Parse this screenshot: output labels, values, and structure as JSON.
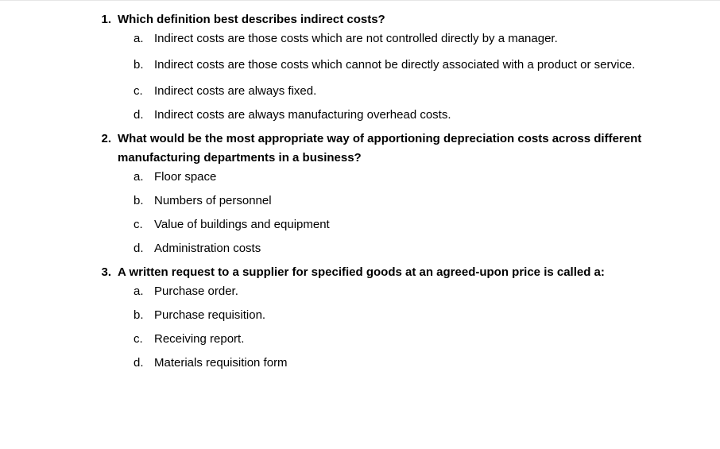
{
  "questions": [
    {
      "number": "1.",
      "text": "Which definition best describes indirect costs?",
      "justify": false,
      "options": [
        {
          "letter": "a.",
          "text": "Indirect costs are those costs which are not controlled directly by a manager.",
          "justify": false,
          "spaced": false
        },
        {
          "letter": "b.",
          "text": "Indirect costs are those costs which cannot be directly associated with a product or service.",
          "justify": true,
          "spaced": true
        },
        {
          "letter": "c.",
          "text": "Indirect costs are always fixed.",
          "justify": false,
          "spaced": false
        },
        {
          "letter": "d.",
          "text": "Indirect costs are always manufacturing overhead costs.",
          "justify": false,
          "spaced": false
        }
      ]
    },
    {
      "number": "2.",
      "text": "What would be the most appropriate way of apportioning depreciation costs across different manufacturing departments in a business?",
      "justify": false,
      "options": [
        {
          "letter": "a.",
          "text": "Floor space",
          "justify": false,
          "spaced": false
        },
        {
          "letter": "b.",
          "text": "Numbers of personnel",
          "justify": false,
          "spaced": false
        },
        {
          "letter": "c.",
          "text": "Value of buildings and equipment",
          "justify": false,
          "spaced": false
        },
        {
          "letter": "d.",
          "text": "Administration costs",
          "justify": false,
          "spaced": false
        }
      ]
    },
    {
      "number": "3.",
      "text": "A written request to a supplier for specified goods at an agreed-upon price is called a:",
      "justify": false,
      "options": [
        {
          "letter": "a.",
          "text": "Purchase order.",
          "justify": false,
          "spaced": false
        },
        {
          "letter": "b.",
          "text": "Purchase requisition.",
          "justify": false,
          "spaced": false
        },
        {
          "letter": "c.",
          "text": "Receiving report.",
          "justify": false,
          "spaced": false
        },
        {
          "letter": "d.",
          "text": "Materials requisition form",
          "justify": false,
          "spaced": false
        }
      ]
    }
  ]
}
